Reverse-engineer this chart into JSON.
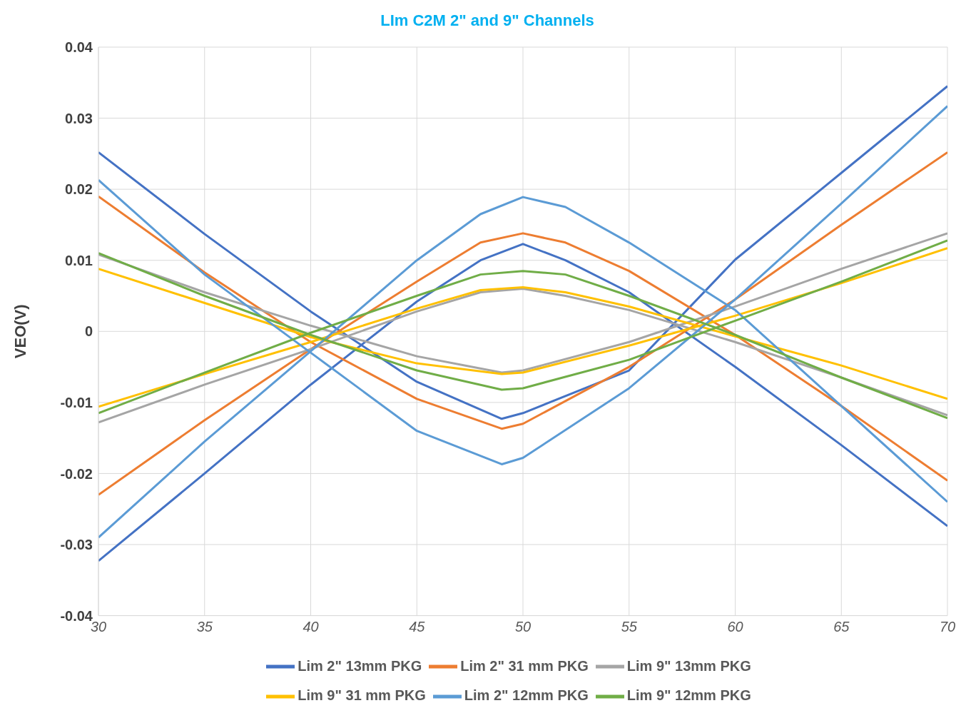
{
  "chart_data": {
    "type": "line",
    "title": "LIm C2M 2\" and 9\" Channels",
    "ylabel": "VEO(V)",
    "x": [
      30,
      35,
      40,
      45,
      49,
      50,
      55,
      60,
      65,
      70
    ],
    "xlim": [
      30,
      70
    ],
    "xticks": [
      30,
      35,
      40,
      45,
      50,
      55,
      60,
      65,
      70
    ],
    "ylim": [
      -0.04,
      0.04
    ],
    "yticks": [
      -0.04,
      -0.03,
      -0.02,
      -0.01,
      0,
      0.01,
      0.02,
      0.03,
      0.04
    ],
    "grid": true,
    "legend": "bottom",
    "marker": "none",
    "line_style": "solid",
    "series": [
      {
        "name": "Lim 2\" 13mm PKG",
        "color": "#4472c4",
        "values": [
          0.0252,
          0.0137,
          0.0028,
          -0.0071,
          -0.0123,
          -0.0115,
          -0.0055,
          0.0101,
          0.0223,
          0.0345
        ]
      },
      {
        "color": "#4472c4",
        "x": [
          30,
          35,
          40,
          45,
          48,
          50,
          52,
          55,
          60,
          65,
          70
        ],
        "values": [
          -0.0323,
          -0.02,
          -0.0075,
          0.0042,
          0.01,
          0.0123,
          0.01,
          0.0055,
          -0.005,
          -0.016,
          -0.0274
        ]
      },
      {
        "name": "Lim 2\" 31 mm PKG",
        "color": "#ed7d31",
        "values": [
          0.019,
          0.0083,
          -0.0015,
          -0.0095,
          -0.0137,
          -0.013,
          -0.005,
          0.0045,
          0.015,
          0.0252
        ]
      },
      {
        "color": "#ed7d31",
        "x": [
          30,
          35,
          40,
          45,
          48,
          50,
          52,
          55,
          60,
          65,
          70
        ],
        "values": [
          -0.023,
          -0.0125,
          -0.0025,
          0.007,
          0.0125,
          0.0138,
          0.0125,
          0.0085,
          -0.0005,
          -0.0105,
          -0.021
        ]
      },
      {
        "name": "Lim 9\" 13mm PKG",
        "color": "#a5a5a5",
        "values": [
          0.0108,
          0.0055,
          0.0008,
          -0.0035,
          -0.0058,
          -0.0055,
          -0.0015,
          0.0035,
          0.0088,
          0.0138
        ]
      },
      {
        "color": "#a5a5a5",
        "x": [
          30,
          35,
          40,
          45,
          48,
          50,
          52,
          55,
          60,
          65,
          70
        ],
        "values": [
          -0.0128,
          -0.0075,
          -0.0025,
          0.0028,
          0.0055,
          0.006,
          0.005,
          0.003,
          -0.0015,
          -0.0065,
          -0.0118
        ]
      },
      {
        "name": "Lim 9\" 31 mm PKG",
        "color": "#ffc000",
        "values": [
          0.0088,
          0.004,
          -0.0008,
          -0.0045,
          -0.006,
          -0.0058,
          -0.002,
          0.0022,
          0.0068,
          0.0117
        ]
      },
      {
        "color": "#ffc000",
        "x": [
          30,
          35,
          40,
          45,
          48,
          50,
          52,
          55,
          60,
          65,
          70
        ],
        "values": [
          -0.0106,
          -0.006,
          -0.0015,
          0.0032,
          0.0058,
          0.0062,
          0.0055,
          0.0035,
          -0.0007,
          -0.0048,
          -0.0095
        ]
      },
      {
        "name": "Lim 2\" 12mm PKG",
        "color": "#5b9bd5",
        "values": [
          0.0213,
          0.008,
          -0.003,
          -0.014,
          -0.0187,
          -0.0178,
          -0.008,
          0.0045,
          0.018,
          0.0317
        ]
      },
      {
        "color": "#5b9bd5",
        "x": [
          30,
          35,
          40,
          45,
          48,
          50,
          52,
          55,
          60,
          65,
          70
        ],
        "values": [
          -0.029,
          -0.0155,
          -0.0028,
          0.01,
          0.0165,
          0.0189,
          0.0175,
          0.0125,
          0.003,
          -0.0105,
          -0.024
        ]
      },
      {
        "name": "Lim 9\" 12mm PKG",
        "color": "#70ad47",
        "values": [
          0.011,
          0.005,
          -0.0005,
          -0.0055,
          -0.0082,
          -0.008,
          -0.004,
          0.0015,
          0.007,
          0.0128
        ]
      },
      {
        "color": "#70ad47",
        "x": [
          30,
          35,
          40,
          45,
          48,
          50,
          52,
          55,
          60,
          65,
          70
        ],
        "values": [
          -0.0115,
          -0.0058,
          -0.0002,
          0.005,
          0.008,
          0.0085,
          0.008,
          0.005,
          -0.0005,
          -0.0065,
          -0.0122
        ]
      }
    ]
  }
}
